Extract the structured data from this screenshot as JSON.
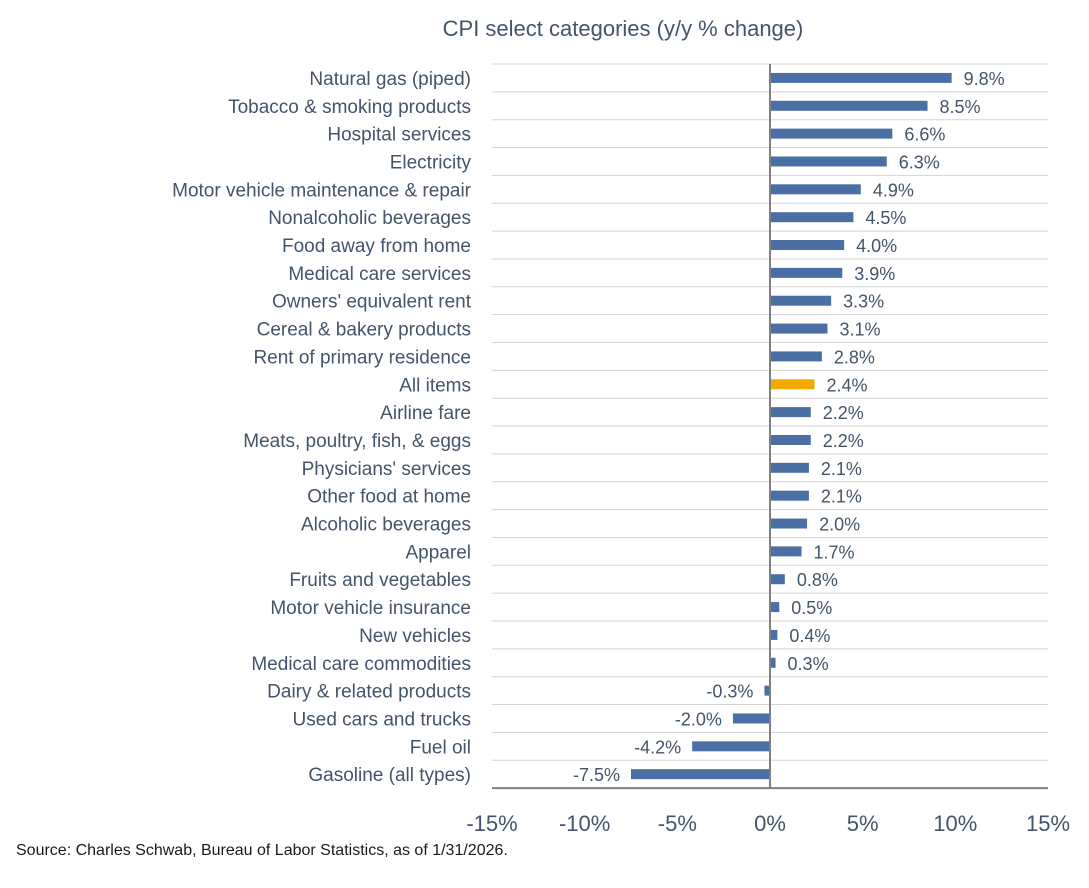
{
  "chart_data": {
    "type": "bar",
    "orientation": "horizontal",
    "title": "CPI select categories (y/y % change)",
    "xlabel": "",
    "ylabel": "",
    "xlim": [
      -15,
      15
    ],
    "xticks": [
      -15,
      -10,
      -5,
      0,
      5,
      10,
      15
    ],
    "xtick_labels": [
      "-15%",
      "-10%",
      "-5%",
      "0%",
      "5%",
      "10%",
      "15%"
    ],
    "categories": [
      "Natural gas (piped)",
      "Tobacco & smoking products",
      "Hospital services",
      "Electricity",
      "Motor vehicle maintenance & repair",
      "Nonalcoholic beverages",
      "Food away from home",
      "Medical care services",
      "Owners' equivalent rent",
      "Cereal & bakery products",
      "Rent of primary residence",
      "All items",
      "Airline fare",
      "Meats, poultry, fish, & eggs",
      "Physicians' services",
      "Other food at home",
      "Alcoholic beverages",
      "Apparel",
      "Fruits and vegetables",
      "Motor vehicle insurance",
      "New vehicles",
      "Medical care commodities",
      "Dairy & related products",
      "Used cars and trucks",
      "Fuel oil",
      "Gasoline (all types)"
    ],
    "values": [
      9.8,
      8.5,
      6.6,
      6.3,
      4.9,
      4.5,
      4.0,
      3.9,
      3.3,
      3.1,
      2.8,
      2.4,
      2.2,
      2.2,
      2.1,
      2.1,
      2.0,
      1.7,
      0.8,
      0.5,
      0.4,
      0.3,
      -0.3,
      -2.0,
      -4.2,
      -7.5
    ],
    "value_labels": [
      "9.8%",
      "8.5%",
      "6.6%",
      "6.3%",
      "4.9%",
      "4.5%",
      "4.0%",
      "3.9%",
      "3.3%",
      "3.1%",
      "2.8%",
      "2.4%",
      "2.2%",
      "2.2%",
      "2.1%",
      "2.1%",
      "2.0%",
      "1.7%",
      "0.8%",
      "0.5%",
      "0.4%",
      "0.3%",
      "-0.3%",
      "-2.0%",
      "-4.2%",
      "-7.5%"
    ],
    "highlight_category": "All items",
    "bar_color": "#4a6fa5",
    "highlight_color": "#f2a900",
    "grid": true
  },
  "source": "Source: Charles Schwab, Bureau of Labor Statistics, as of 1/31/2026."
}
